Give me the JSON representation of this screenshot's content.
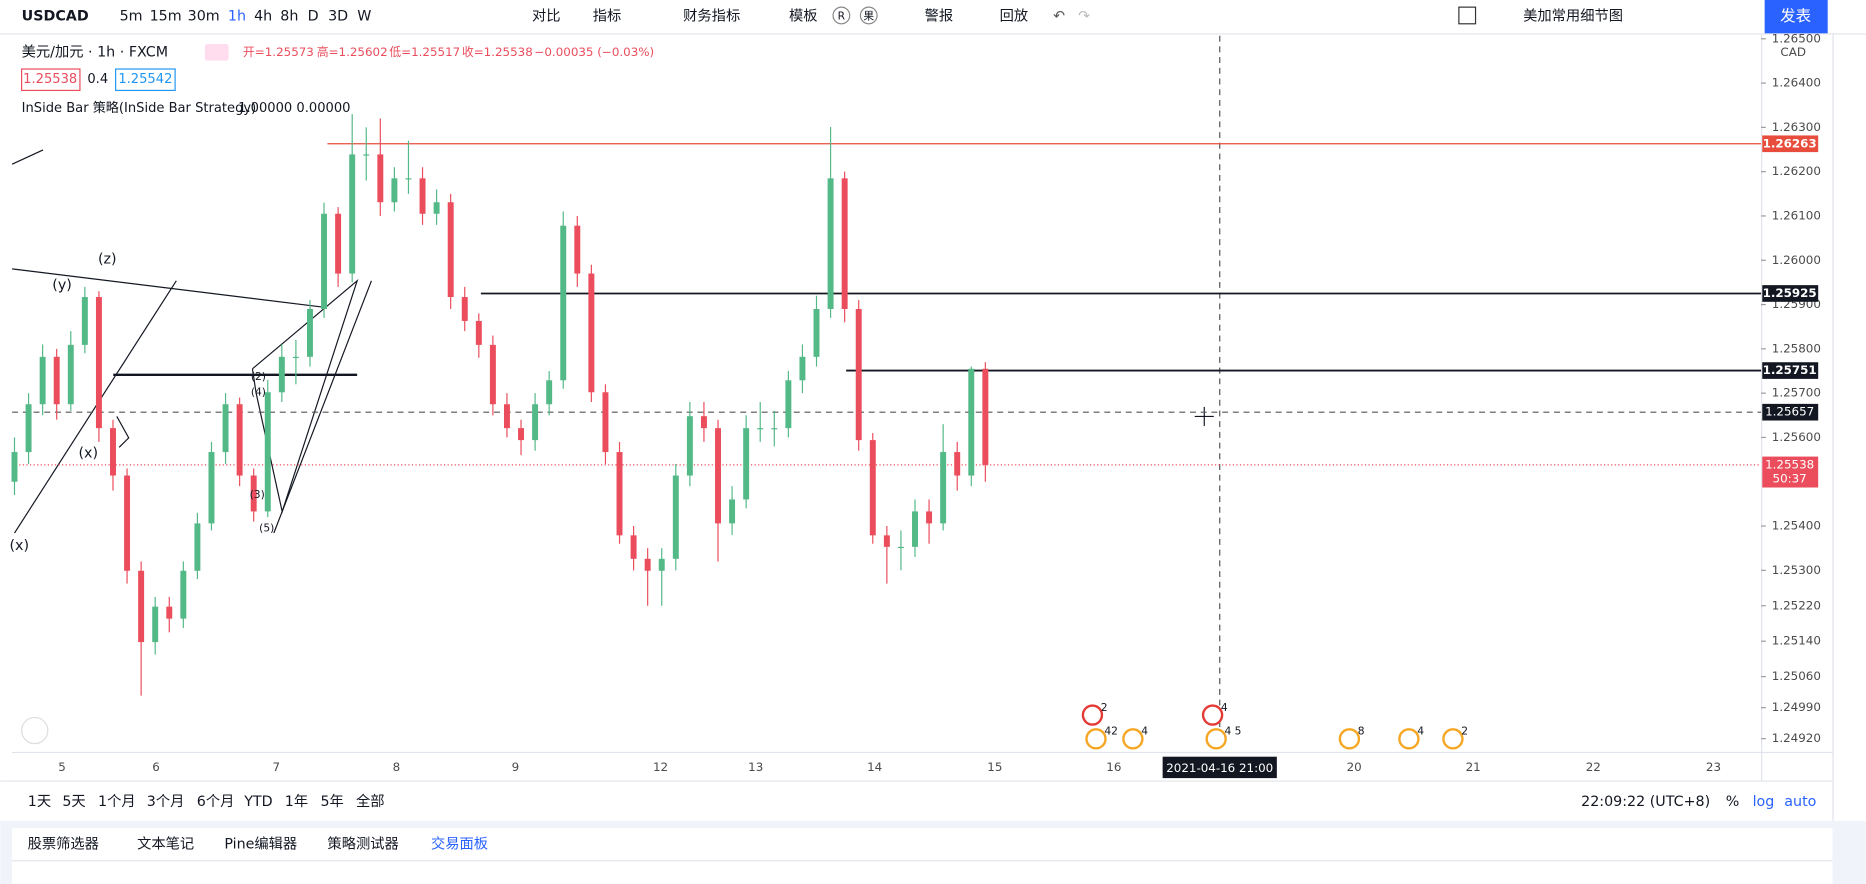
{
  "toolbar": {
    "symbol": "USDCAD",
    "intervals": [
      "5m",
      "15m",
      "30m",
      "1h",
      "4h",
      "8h",
      "D",
      "3D",
      "W"
    ],
    "compare": "对比",
    "indicators": "指标",
    "financials": "财务指标",
    "templates": "模板",
    "r": "R",
    "guo": "果",
    "alert": "警报",
    "replay": "回放",
    "layout": "美加常用细节图",
    "publish": "发表"
  },
  "legend": {
    "name": "美元/加元 · 1h · FXCM",
    "ohlc": [
      "开=1.25573",
      "高=1.25602",
      "低=1.25517",
      "收=1.25538",
      "−0.00035 (−0.03%)"
    ],
    "bid": "1.25538",
    "spread": "0.4",
    "ask": "1.25542",
    "strategy": "InSide Bar 策略(InSide Bar Strategy)",
    "strategy_values": "1.00000 0.00000"
  },
  "chart_data": {
    "type": "candlestick",
    "currency": "CAD",
    "up_color": "#53b987",
    "down_color": "#eb4d5c",
    "ylim": [
      1.2489,
      1.26507
    ],
    "yticks": [
      {
        "value": 1.265,
        "label": "1.26500"
      },
      {
        "value": 1.264,
        "label": "1.26400"
      },
      {
        "value": 1.263,
        "label": "1.26300"
      },
      {
        "value": 1.262,
        "label": "1.26200"
      },
      {
        "value": 1.261,
        "label": "1.26100"
      },
      {
        "value": 1.26,
        "label": "1.26000"
      },
      {
        "value": 1.259,
        "label": "1.25900"
      },
      {
        "value": 1.258,
        "label": "1.25800"
      },
      {
        "value": 1.257,
        "label": "1.25700"
      },
      {
        "value": 1.256,
        "label": "1.25600"
      },
      {
        "value": 1.254,
        "label": "1.25400"
      },
      {
        "value": 1.253,
        "label": "1.25300"
      },
      {
        "value": 1.2522,
        "label": "1.25220"
      },
      {
        "value": 1.2514,
        "label": "1.25140"
      },
      {
        "value": 1.2506,
        "label": "1.25060"
      },
      {
        "value": 1.2499,
        "label": "1.24990"
      },
      {
        "value": 1.2492,
        "label": "1.24920"
      }
    ],
    "x_labels": [
      "5",
      "6",
      "7",
      "8",
      "9",
      "12",
      "13",
      "14",
      "15",
      "16",
      "20",
      "21",
      "22",
      "23"
    ],
    "crosshair_date": "2021-04-16  21:00",
    "candles": [
      [
        1.255,
        1.256,
        1.2547,
        1.25567
      ],
      [
        1.25567,
        1.257,
        1.2554,
        1.25675
      ],
      [
        1.25675,
        1.2581,
        1.2565,
        1.25782
      ],
      [
        1.25782,
        1.258,
        1.2564,
        1.25675
      ],
      [
        1.25675,
        1.2584,
        1.2566,
        1.25809
      ],
      [
        1.25809,
        1.2594,
        1.2579,
        1.25917
      ],
      [
        1.25917,
        1.2593,
        1.2559,
        1.25621
      ],
      [
        1.25621,
        1.2564,
        1.2548,
        1.25514
      ],
      [
        1.25514,
        1.2553,
        1.2527,
        1.25299
      ],
      [
        1.25299,
        1.2532,
        1.25017,
        1.25138
      ],
      [
        1.25138,
        1.2524,
        1.2511,
        1.25218
      ],
      [
        1.25218,
        1.2524,
        1.2516,
        1.25191
      ],
      [
        1.25191,
        1.2532,
        1.2517,
        1.25299
      ],
      [
        1.25299,
        1.2543,
        1.2528,
        1.25406
      ],
      [
        1.25406,
        1.2559,
        1.2539,
        1.25567
      ],
      [
        1.25567,
        1.257,
        1.2554,
        1.25675
      ],
      [
        1.25675,
        1.2569,
        1.2549,
        1.25514
      ],
      [
        1.25514,
        1.2553,
        1.2541,
        1.25433
      ],
      [
        1.25433,
        1.2573,
        1.2542,
        1.25702
      ],
      [
        1.25702,
        1.2581,
        1.2568,
        1.25782
      ],
      [
        1.25782,
        1.2582,
        1.2572,
        1.25782
      ],
      [
        1.25782,
        1.2591,
        1.2576,
        1.2589
      ],
      [
        1.2589,
        1.2613,
        1.2587,
        1.26105
      ],
      [
        1.26105,
        1.2612,
        1.2594,
        1.2597
      ],
      [
        1.2597,
        1.2633,
        1.2595,
        1.26239
      ],
      [
        1.26239,
        1.263,
        1.2618,
        1.26239
      ],
      [
        1.26239,
        1.2632,
        1.261,
        1.26131
      ],
      [
        1.26131,
        1.2621,
        1.2611,
        1.26185
      ],
      [
        1.26185,
        1.2627,
        1.2615,
        1.26185
      ],
      [
        1.26185,
        1.2621,
        1.2608,
        1.26105
      ],
      [
        1.26105,
        1.2616,
        1.2608,
        1.26131
      ],
      [
        1.26131,
        1.2615,
        1.2589,
        1.25917
      ],
      [
        1.25917,
        1.2594,
        1.2584,
        1.25863
      ],
      [
        1.25863,
        1.2588,
        1.2578,
        1.25809
      ],
      [
        1.25809,
        1.2583,
        1.2565,
        1.25675
      ],
      [
        1.25675,
        1.257,
        1.256,
        1.25621
      ],
      [
        1.25621,
        1.2564,
        1.2556,
        1.25594
      ],
      [
        1.25594,
        1.257,
        1.2557,
        1.25675
      ],
      [
        1.25675,
        1.2575,
        1.2565,
        1.25729
      ],
      [
        1.25729,
        1.2611,
        1.2571,
        1.26078
      ],
      [
        1.26078,
        1.261,
        1.2594,
        1.2597
      ],
      [
        1.2597,
        1.2599,
        1.2568,
        1.25702
      ],
      [
        1.25702,
        1.2572,
        1.2554,
        1.25567
      ],
      [
        1.25567,
        1.2559,
        1.2536,
        1.25379
      ],
      [
        1.25379,
        1.254,
        1.253,
        1.25326
      ],
      [
        1.25326,
        1.2535,
        1.2522,
        1.25299
      ],
      [
        1.25299,
        1.2535,
        1.2522,
        1.25326
      ],
      [
        1.25326,
        1.2554,
        1.253,
        1.25514
      ],
      [
        1.25514,
        1.2568,
        1.2549,
        1.25648
      ],
      [
        1.25648,
        1.2568,
        1.2559,
        1.25621
      ],
      [
        1.25621,
        1.2564,
        1.2532,
        1.25406
      ],
      [
        1.25406,
        1.2549,
        1.2538,
        1.2546
      ],
      [
        1.2546,
        1.2565,
        1.2544,
        1.25621
      ],
      [
        1.25621,
        1.2568,
        1.2559,
        1.25621
      ],
      [
        1.25621,
        1.2566,
        1.2558,
        1.25621
      ],
      [
        1.25621,
        1.2575,
        1.256,
        1.25729
      ],
      [
        1.25729,
        1.2581,
        1.257,
        1.25782
      ],
      [
        1.25782,
        1.2592,
        1.2576,
        1.2589
      ],
      [
        1.2589,
        1.26301,
        1.2587,
        1.26185
      ],
      [
        1.26185,
        1.262,
        1.2586,
        1.2589
      ],
      [
        1.2589,
        1.2591,
        1.2557,
        1.25594
      ],
      [
        1.25594,
        1.2561,
        1.2536,
        1.25379
      ],
      [
        1.25379,
        1.254,
        1.2527,
        1.25353
      ],
      [
        1.25353,
        1.2539,
        1.253,
        1.25353
      ],
      [
        1.25353,
        1.2546,
        1.2533,
        1.25433
      ],
      [
        1.25433,
        1.2546,
        1.2536,
        1.25406
      ],
      [
        1.25406,
        1.2563,
        1.2539,
        1.25567
      ],
      [
        1.25567,
        1.2559,
        1.2548,
        1.25514
      ],
      [
        1.25514,
        1.2576,
        1.2549,
        1.25755
      ],
      [
        1.25755,
        1.2577,
        1.255,
        1.25538
      ]
    ],
    "levels": [
      {
        "value": 1.26263,
        "color": "#e74c3c"
      },
      {
        "value": 1.25925,
        "color": "#131722"
      },
      {
        "value": 1.25751,
        "color": "#131722"
      }
    ],
    "crosshair_price": 1.25657,
    "last_price": 1.25538,
    "countdown": "50:37",
    "wave_labels": [
      "(z)",
      "(y)",
      "(x)",
      "(x)",
      "(2)",
      "(4)",
      "(3)",
      "(5)"
    ],
    "events": [
      "2",
      "42",
      "4",
      "4",
      "4 5",
      "8",
      "4",
      "2"
    ]
  },
  "bottom": {
    "ranges": [
      "1天",
      "5天",
      "1个月",
      "3个月",
      "6个月",
      "YTD",
      "1年",
      "5年",
      "全部"
    ],
    "clock": "22:09:22 (UTC+8)",
    "pct": "%",
    "log": "log",
    "auto": "auto"
  },
  "tabs": [
    "股票筛选器",
    "文本笔记",
    "Pine编辑器",
    "策略测试器",
    "交易面板"
  ]
}
